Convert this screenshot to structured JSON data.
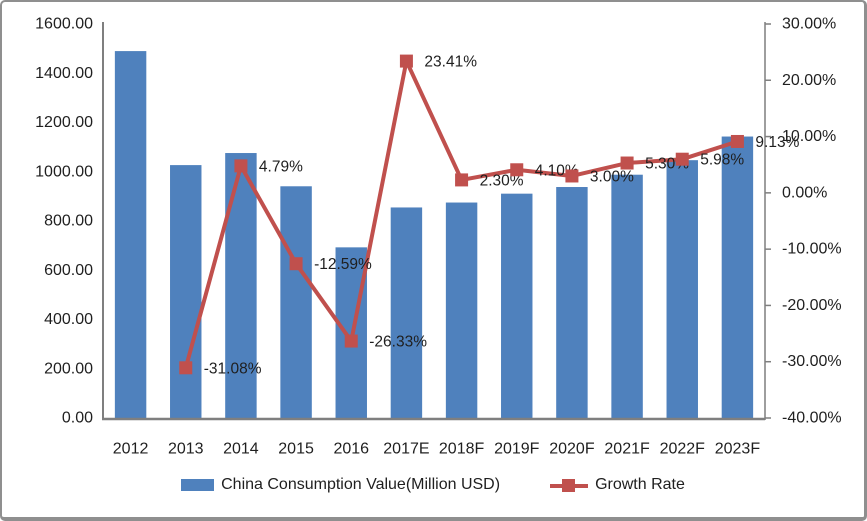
{
  "chart_data": {
    "type": "bar",
    "combo": "bar+line",
    "title": "",
    "categories": [
      "2012",
      "2013",
      "2014",
      "2015",
      "2016",
      "2017E",
      "2018F",
      "2019F",
      "2020F",
      "2021F",
      "2022F",
      "2023F"
    ],
    "series": [
      {
        "name": "China Consumption Value(Million USD)",
        "type": "bar",
        "axis": "left",
        "color": "#4F81BD",
        "values": [
          1490,
          1027,
          1076,
          941,
          693,
          855,
          875,
          911,
          938,
          988,
          1047,
          1143
        ]
      },
      {
        "name": "Growth Rate",
        "type": "line",
        "axis": "right",
        "color": "#C0504D",
        "values": [
          null,
          -31.08,
          4.79,
          -12.59,
          -26.33,
          23.41,
          2.3,
          4.1,
          3.0,
          5.3,
          5.98,
          9.13
        ],
        "point_labels": [
          null,
          "-31.08%",
          "4.79%",
          "-12.59%",
          "-26.33%",
          "23.41%",
          "2.30%",
          "4.10%",
          "3.00%",
          "5.30%",
          "5.98%",
          "9.13%"
        ]
      }
    ],
    "left_axis": {
      "min": 0,
      "max": 1600,
      "step": 200,
      "tick_labels": [
        "1600.00",
        "1400.00",
        "1200.00",
        "1000.00",
        "800.00",
        "600.00",
        "400.00",
        "200.00",
        "0.00"
      ]
    },
    "right_axis": {
      "min": -40,
      "max": 30,
      "step": 10,
      "tick_labels": [
        "30.00%",
        "20.00%",
        "10.00%",
        "0.00%",
        "-10.00%",
        "-20.00%",
        "-30.00%",
        "-40.00%"
      ]
    },
    "grid": false,
    "legend_position": "bottom",
    "legend": [
      "China Consumption Value(Million USD)",
      "Growth Rate"
    ]
  },
  "colors": {
    "bar": "#4F81BD",
    "line": "#C0504D",
    "axis_line": "#7F7F7F",
    "text": "#1f1f1f",
    "frame_border": "#8f8f8f"
  }
}
